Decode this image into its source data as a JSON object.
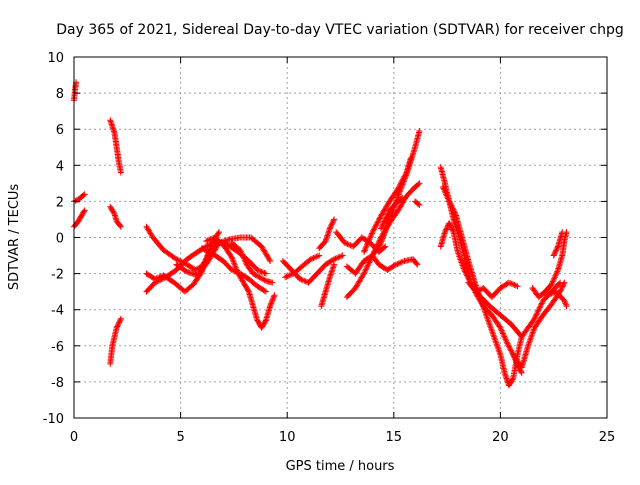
{
  "chart_data": {
    "type": "scatter",
    "title": "Day 365 of 2021, Sidereal Day-to-day VTEC variation (SDTVAR) for receiver chpg",
    "xlabel": "GPS time / hours",
    "ylabel": "SDTVAR / TECUs",
    "xlim": [
      0,
      25
    ],
    "ylim": [
      -10,
      10
    ],
    "x_ticks": [
      0,
      5,
      10,
      15,
      20,
      25
    ],
    "y_ticks": [
      -10,
      -8,
      -6,
      -4,
      -2,
      0,
      2,
      4,
      6,
      8,
      10
    ],
    "x_tick_labels": [
      "0",
      "5",
      "10",
      "15",
      "20",
      "25"
    ],
    "y_tick_labels": [
      "-10",
      "-8",
      "-6",
      "-4",
      "-2",
      "0",
      "2",
      "4",
      "6",
      "8",
      "10"
    ],
    "grid": true,
    "marker": "+",
    "series": [
      {
        "name": "SDTVAR",
        "color": "#ff0000",
        "tracks": [
          [
            [
              0.0,
              7.6
            ],
            [
              0.05,
              8.2
            ],
            [
              0.1,
              8.6
            ]
          ],
          [
            [
              0.0,
              2.0
            ],
            [
              0.2,
              2.1
            ],
            [
              0.4,
              2.3
            ],
            [
              0.5,
              2.4
            ]
          ],
          [
            [
              0.0,
              0.6
            ],
            [
              0.2,
              0.9
            ],
            [
              0.4,
              1.3
            ],
            [
              0.5,
              1.5
            ]
          ],
          [
            [
              1.7,
              6.5
            ],
            [
              1.9,
              5.8
            ],
            [
              2.0,
              5.0
            ],
            [
              2.1,
              4.2
            ],
            [
              2.2,
              3.6
            ]
          ],
          [
            [
              1.7,
              1.7
            ],
            [
              1.9,
              1.3
            ],
            [
              2.0,
              0.9
            ],
            [
              2.2,
              0.6
            ]
          ],
          [
            [
              1.7,
              -7.0
            ],
            [
              1.8,
              -6.0
            ],
            [
              1.9,
              -5.5
            ],
            [
              2.0,
              -5.0
            ],
            [
              2.2,
              -4.5
            ]
          ],
          [
            [
              3.4,
              0.6
            ],
            [
              3.7,
              0.0
            ],
            [
              4.2,
              -0.7
            ],
            [
              4.8,
              -1.2
            ],
            [
              5.3,
              -1.5
            ],
            [
              5.7,
              -1.8
            ],
            [
              6.0,
              -1.6
            ],
            [
              6.4,
              -0.8
            ],
            [
              6.8,
              -0.3
            ]
          ],
          [
            [
              3.4,
              -2.0
            ],
            [
              3.8,
              -2.3
            ],
            [
              4.2,
              -2.1
            ],
            [
              4.7,
              -2.5
            ],
            [
              5.2,
              -3.0
            ],
            [
              5.6,
              -2.6
            ],
            [
              6.0,
              -1.9
            ],
            [
              6.4,
              -0.5
            ],
            [
              6.8,
              0.3
            ]
          ],
          [
            [
              3.4,
              -3.0
            ],
            [
              3.8,
              -2.5
            ],
            [
              4.3,
              -2.2
            ],
            [
              4.8,
              -1.8
            ],
            [
              5.3,
              -1.2
            ],
            [
              5.8,
              -0.8
            ],
            [
              6.2,
              -0.5
            ],
            [
              6.7,
              -0.2
            ],
            [
              7.2,
              -0.4
            ],
            [
              7.7,
              -0.8
            ],
            [
              8.2,
              -1.3
            ],
            [
              8.6,
              -1.8
            ],
            [
              9.0,
              -2.0
            ]
          ],
          [
            [
              4.8,
              -1.5
            ],
            [
              5.3,
              -1.9
            ],
            [
              5.8,
              -2.1
            ],
            [
              6.3,
              -1.3
            ],
            [
              6.8,
              -0.3
            ],
            [
              7.3,
              -0.1
            ],
            [
              7.8,
              0.0
            ],
            [
              8.3,
              0.0
            ],
            [
              8.8,
              -0.5
            ],
            [
              9.2,
              -1.3
            ]
          ],
          [
            [
              6.0,
              -0.6
            ],
            [
              6.5,
              -0.9
            ],
            [
              7.0,
              -1.3
            ],
            [
              7.4,
              -1.8
            ],
            [
              7.8,
              -2.0
            ],
            [
              8.2,
              -2.3
            ],
            [
              8.6,
              -2.7
            ],
            [
              9.0,
              -3.0
            ]
          ],
          [
            [
              6.2,
              -0.2
            ],
            [
              6.6,
              0.0
            ],
            [
              7.0,
              -0.4
            ],
            [
              7.4,
              -1.1
            ],
            [
              7.7,
              -2.0
            ],
            [
              8.0,
              -2.6
            ],
            [
              8.2,
              -3.0
            ],
            [
              8.4,
              -3.8
            ],
            [
              8.6,
              -4.6
            ],
            [
              8.8,
              -5.0
            ],
            [
              9.0,
              -4.6
            ],
            [
              9.2,
              -3.8
            ],
            [
              9.4,
              -3.2
            ]
          ],
          [
            [
              7.4,
              -0.3
            ],
            [
              7.8,
              -0.7
            ],
            [
              8.1,
              -1.5
            ],
            [
              8.4,
              -2.0
            ],
            [
              8.7,
              -2.2
            ],
            [
              9.0,
              -2.4
            ],
            [
              9.3,
              -2.5
            ]
          ],
          [
            [
              9.8,
              -1.3
            ],
            [
              10.2,
              -1.8
            ],
            [
              10.6,
              -2.3
            ],
            [
              11.0,
              -2.5
            ],
            [
              11.4,
              -2.0
            ],
            [
              11.8,
              -1.5
            ],
            [
              12.2,
              -1.2
            ],
            [
              12.6,
              -1.0
            ]
          ],
          [
            [
              9.9,
              -2.2
            ],
            [
              10.3,
              -2.0
            ],
            [
              10.7,
              -1.6
            ],
            [
              11.1,
              -1.2
            ],
            [
              11.5,
              -1.0
            ]
          ],
          [
            [
              11.6,
              -3.8
            ],
            [
              11.8,
              -3.0
            ],
            [
              12.0,
              -2.2
            ],
            [
              12.2,
              -1.5
            ]
          ],
          [
            [
              11.5,
              -0.6
            ],
            [
              11.8,
              -0.2
            ],
            [
              12.0,
              0.5
            ],
            [
              12.2,
              1.0
            ]
          ],
          [
            [
              12.3,
              0.3
            ],
            [
              12.7,
              -0.3
            ],
            [
              13.1,
              -0.5
            ],
            [
              13.5,
              0.0
            ],
            [
              13.9,
              -0.3
            ],
            [
              14.3,
              -0.8
            ],
            [
              14.6,
              -0.5
            ]
          ],
          [
            [
              12.8,
              -1.6
            ],
            [
              13.2,
              -2.0
            ],
            [
              13.6,
              -1.3
            ],
            [
              14.0,
              -1.0
            ],
            [
              14.3,
              -1.5
            ],
            [
              14.7,
              -1.8
            ],
            [
              15.1,
              -1.5
            ],
            [
              15.5,
              -1.3
            ],
            [
              15.9,
              -1.2
            ],
            [
              16.1,
              -1.5
            ]
          ],
          [
            [
              12.8,
              -3.3
            ],
            [
              13.2,
              -2.8
            ],
            [
              13.6,
              -2.0
            ],
            [
              14.0,
              -1.0
            ],
            [
              14.4,
              0.0
            ],
            [
              14.8,
              0.8
            ],
            [
              15.2,
              1.5
            ],
            [
              15.6,
              2.3
            ],
            [
              16.0,
              2.8
            ],
            [
              16.2,
              3.0
            ]
          ],
          [
            [
              13.6,
              -0.8
            ],
            [
              14.0,
              0.3
            ],
            [
              14.4,
              1.2
            ],
            [
              14.8,
              2.0
            ],
            [
              15.2,
              2.7
            ],
            [
              15.6,
              3.6
            ],
            [
              15.8,
              4.4
            ]
          ],
          [
            [
              14.0,
              -1.0
            ],
            [
              14.4,
              -0.3
            ],
            [
              14.8,
              1.0
            ],
            [
              15.2,
              2.3
            ],
            [
              15.6,
              3.5
            ],
            [
              16.0,
              5.0
            ],
            [
              16.2,
              5.9
            ]
          ],
          [
            [
              14.4,
              0.5
            ],
            [
              14.8,
              1.5
            ],
            [
              15.2,
              2.0
            ],
            [
              15.4,
              2.2
            ]
          ],
          [
            [
              16.0,
              2.0
            ],
            [
              16.2,
              1.8
            ]
          ],
          [
            [
              17.2,
              3.9
            ],
            [
              17.4,
              3.0
            ],
            [
              17.6,
              2.0
            ],
            [
              17.8,
              1.0
            ],
            [
              18.0,
              0.3
            ],
            [
              18.3,
              -1.0
            ],
            [
              18.6,
              -2.5
            ],
            [
              18.9,
              -3.2
            ],
            [
              19.2,
              -3.8
            ],
            [
              19.6,
              -4.3
            ],
            [
              20.0,
              -5.0
            ],
            [
              20.3,
              -5.8
            ],
            [
              20.6,
              -6.5
            ],
            [
              20.9,
              -7.3
            ],
            [
              21.0,
              -7.5
            ]
          ],
          [
            [
              17.2,
              -0.5
            ],
            [
              17.4,
              0.3
            ],
            [
              17.6,
              0.8
            ],
            [
              17.8,
              0.3
            ],
            [
              18.0,
              -0.8
            ],
            [
              18.3,
              -1.8
            ],
            [
              18.6,
              -2.5
            ],
            [
              18.9,
              -3.0
            ],
            [
              19.2,
              -2.8
            ],
            [
              19.6,
              -3.3
            ],
            [
              20.0,
              -2.8
            ],
            [
              20.4,
              -2.5
            ],
            [
              20.8,
              -2.7
            ]
          ],
          [
            [
              17.3,
              2.8
            ],
            [
              17.6,
              2.0
            ],
            [
              17.9,
              1.3
            ],
            [
              18.2,
              0.0
            ],
            [
              18.5,
              -1.3
            ],
            [
              18.8,
              -2.5
            ],
            [
              19.1,
              -3.5
            ],
            [
              19.4,
              -4.5
            ],
            [
              19.7,
              -5.5
            ],
            [
              20.0,
              -6.5
            ],
            [
              20.2,
              -7.5
            ],
            [
              20.4,
              -8.2
            ],
            [
              20.6,
              -7.8
            ],
            [
              20.8,
              -6.5
            ],
            [
              21.0,
              -5.5
            ]
          ],
          [
            [
              18.5,
              -2.5
            ],
            [
              19.0,
              -3.2
            ],
            [
              19.5,
              -3.8
            ],
            [
              20.0,
              -4.3
            ],
            [
              20.5,
              -4.8
            ],
            [
              21.0,
              -5.5
            ],
            [
              21.3,
              -5.0
            ],
            [
              21.6,
              -4.5
            ],
            [
              22.0,
              -3.5
            ],
            [
              22.4,
              -3.0
            ],
            [
              22.8,
              -2.5
            ]
          ],
          [
            [
              20.6,
              -6.5
            ],
            [
              21.0,
              -7.2
            ],
            [
              21.3,
              -6.0
            ],
            [
              21.6,
              -5.0
            ],
            [
              22.0,
              -4.3
            ],
            [
              22.4,
              -3.7
            ],
            [
              22.8,
              -3.0
            ],
            [
              23.0,
              -2.5
            ]
          ],
          [
            [
              21.5,
              -2.8
            ],
            [
              21.8,
              -3.3
            ],
            [
              22.1,
              -3.0
            ],
            [
              22.4,
              -2.6
            ],
            [
              22.7,
              -1.8
            ],
            [
              22.9,
              -1.0
            ],
            [
              23.0,
              -0.2
            ],
            [
              23.1,
              0.3
            ]
          ],
          [
            [
              22.2,
              -3.2
            ],
            [
              22.6,
              -3.0
            ],
            [
              23.0,
              -3.5
            ],
            [
              23.1,
              -3.8
            ]
          ],
          [
            [
              22.5,
              -1.0
            ],
            [
              22.7,
              -0.5
            ],
            [
              22.9,
              0.3
            ]
          ]
        ]
      }
    ]
  }
}
